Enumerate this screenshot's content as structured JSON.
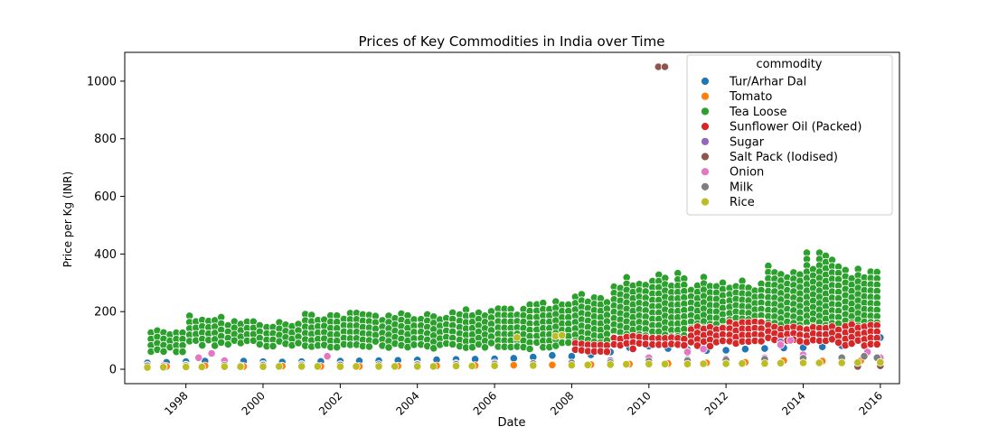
{
  "chart_data": {
    "type": "scatter",
    "title": "Prices of Key Commodities in India over Time",
    "xlabel": "Date",
    "ylabel": "Price per Kg (INR)",
    "xlim": [
      "1996-06-01",
      "2016-06-30"
    ],
    "ylim": [
      -50,
      1100
    ],
    "x_ticks": [
      "1998",
      "2000",
      "2002",
      "2004",
      "2006",
      "2008",
      "2010",
      "2012",
      "2014",
      "2016"
    ],
    "y_ticks": [
      0,
      200,
      400,
      600,
      800,
      1000
    ],
    "grid": false,
    "legend": {
      "title": "commodity",
      "placement": "top-right"
    },
    "series": [
      {
        "name": "Tur/Arhar Dal",
        "color": "#1f77b4",
        "points": [
          [
            "1997-01-01",
            22
          ],
          [
            "1997-07-01",
            24
          ],
          [
            "1998-01-01",
            26
          ],
          [
            "1998-07-01",
            28
          ],
          [
            "1999-01-01",
            30
          ],
          [
            "1999-07-01",
            28
          ],
          [
            "2000-01-01",
            26
          ],
          [
            "2000-07-01",
            25
          ],
          [
            "2001-01-01",
            26
          ],
          [
            "2001-07-01",
            27
          ],
          [
            "2002-01-01",
            28
          ],
          [
            "2002-07-01",
            29
          ],
          [
            "2003-01-01",
            30
          ],
          [
            "2003-07-01",
            31
          ],
          [
            "2004-01-01",
            32
          ],
          [
            "2004-07-01",
            33
          ],
          [
            "2005-01-01",
            34
          ],
          [
            "2005-07-01",
            35
          ],
          [
            "2006-01-01",
            36
          ],
          [
            "2006-07-01",
            38
          ],
          [
            "2007-01-01",
            42
          ],
          [
            "2007-07-01",
            48
          ],
          [
            "2008-01-01",
            45
          ],
          [
            "2008-07-01",
            50
          ],
          [
            "2009-01-01",
            60
          ],
          [
            "2009-07-01",
            75
          ],
          [
            "2010-01-01",
            80
          ],
          [
            "2010-07-01",
            72
          ],
          [
            "2011-01-01",
            68
          ],
          [
            "2011-07-01",
            65
          ],
          [
            "2012-01-01",
            66
          ],
          [
            "2012-07-01",
            70
          ],
          [
            "2013-01-01",
            72
          ],
          [
            "2013-07-01",
            74
          ],
          [
            "2014-01-01",
            75
          ],
          [
            "2014-07-01",
            78
          ],
          [
            "2015-01-01",
            82
          ],
          [
            "2015-07-01",
            100
          ],
          [
            "2016-01-01",
            110
          ]
        ]
      },
      {
        "name": "Tomato",
        "color": "#ff7f0e",
        "points": [
          [
            "1997-01-01",
            8
          ],
          [
            "1997-07-01",
            10
          ],
          [
            "1998-01-01",
            9
          ],
          [
            "1998-07-01",
            12
          ],
          [
            "1999-01-01",
            8
          ],
          [
            "1999-07-01",
            10
          ],
          [
            "2000-01-01",
            9
          ],
          [
            "2000-07-01",
            11
          ],
          [
            "2001-01-01",
            8
          ],
          [
            "2001-07-01",
            10
          ],
          [
            "2002-01-01",
            9
          ],
          [
            "2002-07-01",
            10
          ],
          [
            "2003-01-01",
            9
          ],
          [
            "2003-07-01",
            11
          ],
          [
            "2004-01-01",
            10
          ],
          [
            "2004-07-01",
            12
          ],
          [
            "2005-01-01",
            11
          ],
          [
            "2005-07-01",
            13
          ],
          [
            "2006-01-01",
            12
          ],
          [
            "2006-07-01",
            14
          ],
          [
            "2007-01-01",
            13
          ],
          [
            "2007-07-01",
            15
          ],
          [
            "2008-01-01",
            14
          ],
          [
            "2008-07-01",
            16
          ],
          [
            "2009-01-01",
            15
          ],
          [
            "2009-07-01",
            18
          ],
          [
            "2010-01-01",
            17
          ],
          [
            "2010-07-01",
            20
          ],
          [
            "2011-01-01",
            18
          ],
          [
            "2011-07-01",
            22
          ],
          [
            "2012-01-01",
            20
          ],
          [
            "2012-07-01",
            24
          ],
          [
            "2013-01-01",
            22
          ],
          [
            "2013-07-01",
            30
          ],
          [
            "2014-01-01",
            25
          ],
          [
            "2014-07-01",
            28
          ],
          [
            "2015-01-01",
            24
          ],
          [
            "2015-07-01",
            30
          ],
          [
            "2016-01-01",
            28
          ]
        ]
      },
      {
        "name": "Tea Loose",
        "color": "#2ca02c",
        "bands": [
          [
            "1997-01-01",
            "1997-12-31",
            60,
            140
          ],
          [
            "1998-01-01",
            "1998-12-31",
            80,
            190
          ],
          [
            "1999-01-01",
            "1999-12-31",
            80,
            170
          ],
          [
            "2000-01-01",
            "2000-12-31",
            75,
            165
          ],
          [
            "2001-01-01",
            "2001-12-31",
            70,
            200
          ],
          [
            "2002-01-01",
            "2002-12-31",
            75,
            200
          ],
          [
            "2003-01-01",
            "2003-12-31",
            75,
            200
          ],
          [
            "2004-01-01",
            "2004-12-31",
            70,
            200
          ],
          [
            "2005-01-01",
            "2005-12-31",
            70,
            210
          ],
          [
            "2006-01-01",
            "2006-12-31",
            70,
            225
          ],
          [
            "2007-01-01",
            "2007-12-31",
            75,
            235
          ],
          [
            "2008-01-01",
            "2008-12-31",
            90,
            270
          ],
          [
            "2009-01-01",
            "2009-12-31",
            100,
            320
          ],
          [
            "2010-01-01",
            "2010-12-31",
            110,
            345
          ],
          [
            "2011-01-01",
            "2011-12-31",
            120,
            320
          ],
          [
            "2012-01-01",
            "2012-12-31",
            130,
            320
          ],
          [
            "2013-01-01",
            "2013-12-31",
            130,
            370
          ],
          [
            "2014-01-01",
            "2014-12-31",
            140,
            410
          ],
          [
            "2015-01-01",
            "2015-12-31",
            150,
            360
          ]
        ]
      },
      {
        "name": "Sunflower Oil (Packed)",
        "color": "#d62728",
        "bands": [
          [
            "2008-01-01",
            "2008-12-31",
            60,
            90
          ],
          [
            "2009-01-01",
            "2009-12-31",
            70,
            115
          ],
          [
            "2010-01-01",
            "2010-12-31",
            70,
            115
          ],
          [
            "2011-01-01",
            "2011-12-31",
            80,
            150
          ],
          [
            "2012-01-01",
            "2012-12-31",
            85,
            170
          ],
          [
            "2013-01-01",
            "2013-12-31",
            90,
            155
          ],
          [
            "2014-01-01",
            "2014-12-31",
            90,
            150
          ],
          [
            "2015-01-01",
            "2015-12-31",
            80,
            155
          ]
        ]
      },
      {
        "name": "Sugar",
        "color": "#9467bd",
        "points": [
          [
            "1997-01-01",
            14
          ],
          [
            "1998-01-01",
            15
          ],
          [
            "1999-01-01",
            16
          ],
          [
            "2000-01-01",
            17
          ],
          [
            "2001-01-01",
            17
          ],
          [
            "2002-01-01",
            16
          ],
          [
            "2003-01-01",
            16
          ],
          [
            "2004-01-01",
            18
          ],
          [
            "2005-01-01",
            20
          ],
          [
            "2006-01-01",
            22
          ],
          [
            "2007-01-01",
            20
          ],
          [
            "2008-01-01",
            20
          ],
          [
            "2009-01-01",
            30
          ],
          [
            "2010-01-01",
            40
          ],
          [
            "2011-01-01",
            34
          ],
          [
            "2012-01-01",
            36
          ],
          [
            "2013-01-01",
            40
          ],
          [
            "2013-06-01",
            95
          ],
          [
            "2014-01-01",
            38
          ],
          [
            "2015-01-01",
            36
          ],
          [
            "2016-01-01",
            38
          ]
        ]
      },
      {
        "name": "Salt Pack (Iodised)",
        "color": "#8c564b",
        "points": [
          [
            "2010-04-01",
            1050
          ],
          [
            "2010-06-01",
            1050
          ],
          [
            "2015-06-01",
            10
          ],
          [
            "2016-01-01",
            12
          ]
        ]
      },
      {
        "name": "Onion",
        "color": "#e377c2",
        "points": [
          [
            "1997-01-01",
            10
          ],
          [
            "1997-06-01",
            12
          ],
          [
            "1998-01-01",
            14
          ],
          [
            "1998-05-01",
            40
          ],
          [
            "1998-09-01",
            55
          ],
          [
            "1999-01-01",
            30
          ],
          [
            "1999-06-01",
            12
          ],
          [
            "2000-01-01",
            10
          ],
          [
            "2001-01-01",
            10
          ],
          [
            "2001-09-01",
            45
          ],
          [
            "2002-01-01",
            12
          ],
          [
            "2003-01-01",
            12
          ],
          [
            "2004-01-01",
            14
          ],
          [
            "2005-01-01",
            14
          ],
          [
            "2006-01-01",
            16
          ],
          [
            "2007-01-01",
            18
          ],
          [
            "2008-01-01",
            20
          ],
          [
            "2009-01-01",
            22
          ],
          [
            "2010-01-01",
            40
          ],
          [
            "2011-01-01",
            60
          ],
          [
            "2011-06-01",
            70
          ],
          [
            "2012-01-01",
            30
          ],
          [
            "2013-01-01",
            40
          ],
          [
            "2013-06-01",
            85
          ],
          [
            "2013-09-01",
            100
          ],
          [
            "2014-01-01",
            50
          ],
          [
            "2015-01-01",
            40
          ],
          [
            "2015-09-01",
            60
          ],
          [
            "2016-01-01",
            40
          ]
        ]
      },
      {
        "name": "Milk",
        "color": "#7f7f7f",
        "points": [
          [
            "1997-01-01",
            12
          ],
          [
            "1998-01-01",
            13
          ],
          [
            "1999-01-01",
            14
          ],
          [
            "2000-01-01",
            14
          ],
          [
            "2001-01-01",
            15
          ],
          [
            "2002-01-01",
            15
          ],
          [
            "2003-01-01",
            16
          ],
          [
            "2004-01-01",
            16
          ],
          [
            "2005-01-01",
            17
          ],
          [
            "2006-01-01",
            18
          ],
          [
            "2007-01-01",
            20
          ],
          [
            "2008-01-01",
            22
          ],
          [
            "2009-01-01",
            24
          ],
          [
            "2010-01-01",
            28
          ],
          [
            "2011-01-01",
            30
          ],
          [
            "2012-01-01",
            32
          ],
          [
            "2013-01-01",
            35
          ],
          [
            "2014-01-01",
            38
          ],
          [
            "2015-01-01",
            40
          ],
          [
            "2015-08-01",
            45
          ],
          [
            "2015-12-01",
            40
          ]
        ]
      },
      {
        "name": "Rice",
        "color": "#bcbd22",
        "points": [
          [
            "1997-01-01",
            6
          ],
          [
            "1997-06-01",
            7
          ],
          [
            "1998-01-01",
            8
          ],
          [
            "1998-06-01",
            8
          ],
          [
            "1999-01-01",
            9
          ],
          [
            "1999-06-01",
            9
          ],
          [
            "2000-01-01",
            9
          ],
          [
            "2000-06-01",
            10
          ],
          [
            "2001-01-01",
            10
          ],
          [
            "2001-06-01",
            10
          ],
          [
            "2002-01-01",
            9
          ],
          [
            "2002-06-01",
            10
          ],
          [
            "2003-01-01",
            10
          ],
          [
            "2003-06-01",
            10
          ],
          [
            "2004-01-01",
            10
          ],
          [
            "2004-06-01",
            10
          ],
          [
            "2005-01-01",
            11
          ],
          [
            "2005-06-01",
            11
          ],
          [
            "2006-01-01",
            12
          ],
          [
            "2006-08-01",
            110
          ],
          [
            "2007-01-01",
            13
          ],
          [
            "2007-08-01",
            115
          ],
          [
            "2007-10-01",
            118
          ],
          [
            "2008-01-01",
            14
          ],
          [
            "2008-06-01",
            15
          ],
          [
            "2009-01-01",
            16
          ],
          [
            "2009-06-01",
            17
          ],
          [
            "2010-01-01",
            18
          ],
          [
            "2010-06-01",
            18
          ],
          [
            "2011-01-01",
            18
          ],
          [
            "2011-06-01",
            19
          ],
          [
            "2012-01-01",
            19
          ],
          [
            "2012-06-01",
            20
          ],
          [
            "2013-01-01",
            20
          ],
          [
            "2013-06-01",
            21
          ],
          [
            "2014-01-01",
            22
          ],
          [
            "2014-06-01",
            22
          ],
          [
            "2015-01-01",
            22
          ],
          [
            "2015-06-01",
            23
          ],
          [
            "2016-01-01",
            24
          ]
        ]
      }
    ]
  }
}
